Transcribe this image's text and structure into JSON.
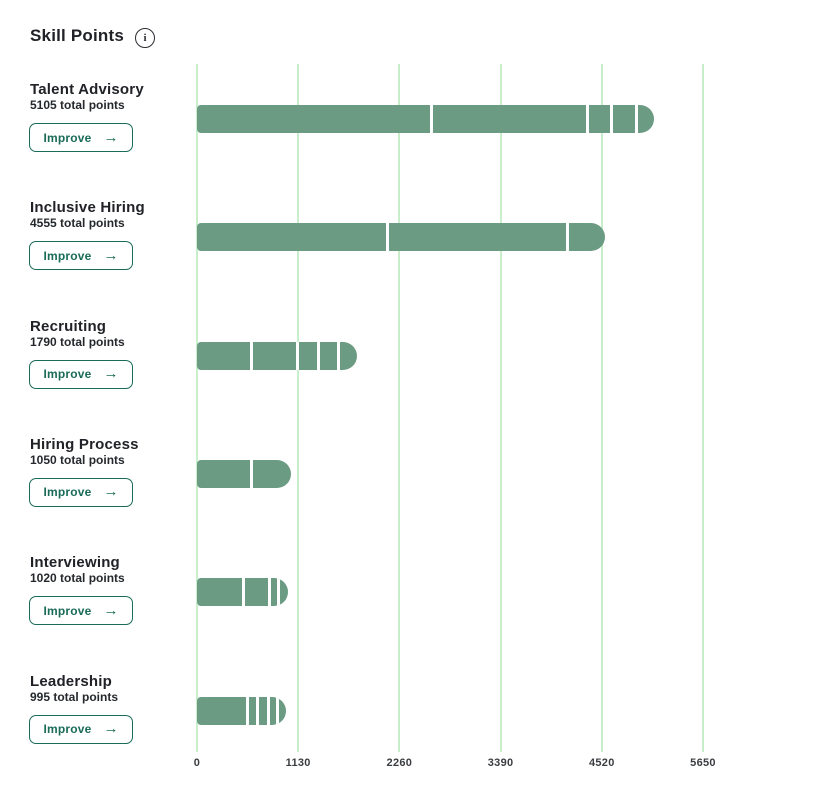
{
  "page": {
    "title": "Skill Points"
  },
  "icons": {
    "info": "i",
    "arrow_right": "→"
  },
  "labels": {
    "improve": "Improve"
  },
  "colors": {
    "bar_green": "#6b9b82",
    "gridline_green": "#c9efca",
    "accent_green": "#1a6b58",
    "text_dark": "#202227"
  },
  "skills": [
    {
      "name": "Talent Advisory",
      "points_label": "5105 total points",
      "total": 5105,
      "segments": [
        2620,
        1740,
        270,
        280,
        195
      ]
    },
    {
      "name": "Inclusive Hiring",
      "points_label": "4555 total points",
      "total": 4555,
      "segments": [
        2125,
        2010,
        420
      ]
    },
    {
      "name": "Recruiting",
      "points_label": "1790 total points",
      "total": 1790,
      "segments": [
        610,
        515,
        235,
        220,
        210
      ]
    },
    {
      "name": "Hiring Process",
      "points_label": "1050 total points",
      "total": 1050,
      "segments": [
        610,
        440
      ]
    },
    {
      "name": "Interviewing",
      "points_label": "1020 total points",
      "total": 1020,
      "segments": [
        520,
        290,
        100,
        110
      ]
    },
    {
      "name": "Leadership",
      "points_label": "995 total points",
      "total": 995,
      "segments": [
        565,
        110,
        125,
        100,
        95
      ]
    }
  ],
  "chart_data": {
    "type": "bar",
    "orientation": "horizontal",
    "title": "Skill Points",
    "categories": [
      "Talent Advisory",
      "Inclusive Hiring",
      "Recruiting",
      "Hiring Process",
      "Interviewing",
      "Leadership"
    ],
    "values": [
      5105,
      4555,
      1790,
      1050,
      1020,
      995
    ],
    "series": [
      {
        "name": "Talent Advisory segments",
        "values": [
          2620,
          1740,
          270,
          280,
          195
        ]
      },
      {
        "name": "Inclusive Hiring segments",
        "values": [
          2125,
          2010,
          420
        ]
      },
      {
        "name": "Recruiting segments",
        "values": [
          610,
          515,
          235,
          220,
          210
        ]
      },
      {
        "name": "Hiring Process segments",
        "values": [
          610,
          440
        ]
      },
      {
        "name": "Interviewing segments",
        "values": [
          520,
          290,
          100,
          110
        ]
      },
      {
        "name": "Leadership segments",
        "values": [
          565,
          110,
          125,
          100,
          95
        ]
      }
    ],
    "xlabel": "",
    "ylabel": "",
    "xticks": [
      0,
      1130,
      2260,
      3390,
      4520,
      5650
    ],
    "xlim": [
      0,
      5650
    ],
    "grid": "vertical",
    "legend": "none",
    "bar_style": "segmented, rounded right cap"
  }
}
